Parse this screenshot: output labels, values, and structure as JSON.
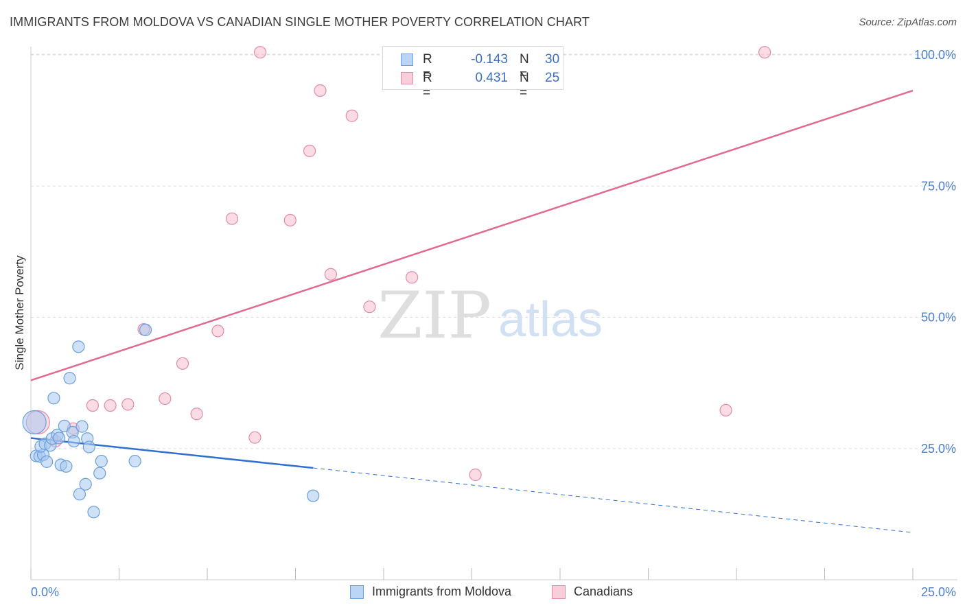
{
  "title": "IMMIGRANTS FROM MOLDOVA VS CANADIAN SINGLE MOTHER POVERTY CORRELATION CHART",
  "source": "Source: ZipAtlas.com",
  "watermark": {
    "zip": "ZIP",
    "atlas": "atlas"
  },
  "legend": {
    "series1": {
      "r_label": "R =",
      "r_value": "-0.143",
      "n_label": "N =",
      "n_value": "30"
    },
    "series2": {
      "r_label": "R =",
      "r_value": "0.431",
      "n_label": "N =",
      "n_value": "25"
    }
  },
  "colors": {
    "blue_fill": "#a8c8f0",
    "blue_stroke": "#6a9edc",
    "blue_line": "#2f6fd0",
    "pink_fill": "#f7bfd0",
    "pink_stroke": "#e38aa6",
    "pink_line": "#e06a93",
    "tick_label": "#4a7fcf",
    "grid": "#dddddd"
  },
  "chart_data": {
    "type": "scatter",
    "title": "IMMIGRANTS FROM MOLDOVA VS CANADIAN SINGLE MOTHER POVERTY CORRELATION CHART",
    "xlabel": "",
    "ylabel": "Single Mother Poverty",
    "xlim": [
      0,
      25
    ],
    "ylim": [
      0,
      102
    ],
    "x_tick_labels": [
      "0.0%",
      "25.0%"
    ],
    "y_ticks": [
      25,
      50,
      75,
      100
    ],
    "y_tick_labels": [
      "25.0%",
      "50.0%",
      "75.0%",
      "100.0%"
    ],
    "grid": true,
    "legend_position": "bottom",
    "series": [
      {
        "name": "Immigrants from Moldova",
        "color": "#a8c8f0",
        "points": [
          {
            "x": 0.1,
            "y": 30.0,
            "size": "large"
          },
          {
            "x": 0.15,
            "y": 23.6
          },
          {
            "x": 0.25,
            "y": 23.5
          },
          {
            "x": 0.35,
            "y": 23.8
          },
          {
            "x": 0.28,
            "y": 25.4
          },
          {
            "x": 0.4,
            "y": 25.9
          },
          {
            "x": 0.45,
            "y": 22.5
          },
          {
            "x": 0.55,
            "y": 25.6
          },
          {
            "x": 0.6,
            "y": 26.9
          },
          {
            "x": 0.65,
            "y": 34.6
          },
          {
            "x": 0.75,
            "y": 27.6
          },
          {
            "x": 0.8,
            "y": 27.0
          },
          {
            "x": 0.85,
            "y": 21.9
          },
          {
            "x": 0.95,
            "y": 29.3
          },
          {
            "x": 1.0,
            "y": 21.6
          },
          {
            "x": 1.1,
            "y": 38.4
          },
          {
            "x": 1.18,
            "y": 28.1
          },
          {
            "x": 1.22,
            "y": 26.4
          },
          {
            "x": 1.35,
            "y": 44.4
          },
          {
            "x": 1.38,
            "y": 16.3
          },
          {
            "x": 1.45,
            "y": 29.2
          },
          {
            "x": 1.55,
            "y": 18.2
          },
          {
            "x": 1.6,
            "y": 26.9
          },
          {
            "x": 1.65,
            "y": 25.3
          },
          {
            "x": 1.78,
            "y": 12.9
          },
          {
            "x": 1.95,
            "y": 20.3
          },
          {
            "x": 2.0,
            "y": 22.6
          },
          {
            "x": 2.95,
            "y": 22.6
          },
          {
            "x": 3.25,
            "y": 47.6
          },
          {
            "x": 8.0,
            "y": 16.0
          }
        ]
      },
      {
        "name": "Canadians",
        "color": "#f7bfd0",
        "points": [
          {
            "x": 0.2,
            "y": 30.0,
            "size": "large"
          },
          {
            "x": 0.7,
            "y": 26.4
          },
          {
            "x": 1.75,
            "y": 33.2
          },
          {
            "x": 1.2,
            "y": 28.8
          },
          {
            "x": 2.25,
            "y": 33.2
          },
          {
            "x": 2.75,
            "y": 33.4
          },
          {
            "x": 3.2,
            "y": 47.7
          },
          {
            "x": 3.8,
            "y": 34.5
          },
          {
            "x": 4.3,
            "y": 41.2
          },
          {
            "x": 4.7,
            "y": 31.6
          },
          {
            "x": 5.3,
            "y": 47.4
          },
          {
            "x": 5.7,
            "y": 68.8
          },
          {
            "x": 6.35,
            "y": 27.1
          },
          {
            "x": 6.5,
            "y": 100.5
          },
          {
            "x": 7.35,
            "y": 68.5
          },
          {
            "x": 7.9,
            "y": 81.7
          },
          {
            "x": 8.2,
            "y": 93.2
          },
          {
            "x": 8.5,
            "y": 58.2
          },
          {
            "x": 9.1,
            "y": 88.4
          },
          {
            "x": 9.6,
            "y": 52.0
          },
          {
            "x": 10.4,
            "y": 100.5
          },
          {
            "x": 10.8,
            "y": 57.6
          },
          {
            "x": 12.6,
            "y": 20.0
          },
          {
            "x": 19.7,
            "y": 32.3
          },
          {
            "x": 20.8,
            "y": 100.5
          }
        ]
      }
    ],
    "trend_lines": [
      {
        "series": "Immigrants from Moldova",
        "x_start": 0,
        "y_start": 27.0,
        "x_solid_end": 8.0,
        "y_solid_end": 21.3,
        "x_end": 25,
        "y_end": 9.0
      },
      {
        "series": "Canadians",
        "x_start": 0,
        "y_start": 38.0,
        "x_end": 25,
        "y_end": 93.2
      }
    ]
  }
}
